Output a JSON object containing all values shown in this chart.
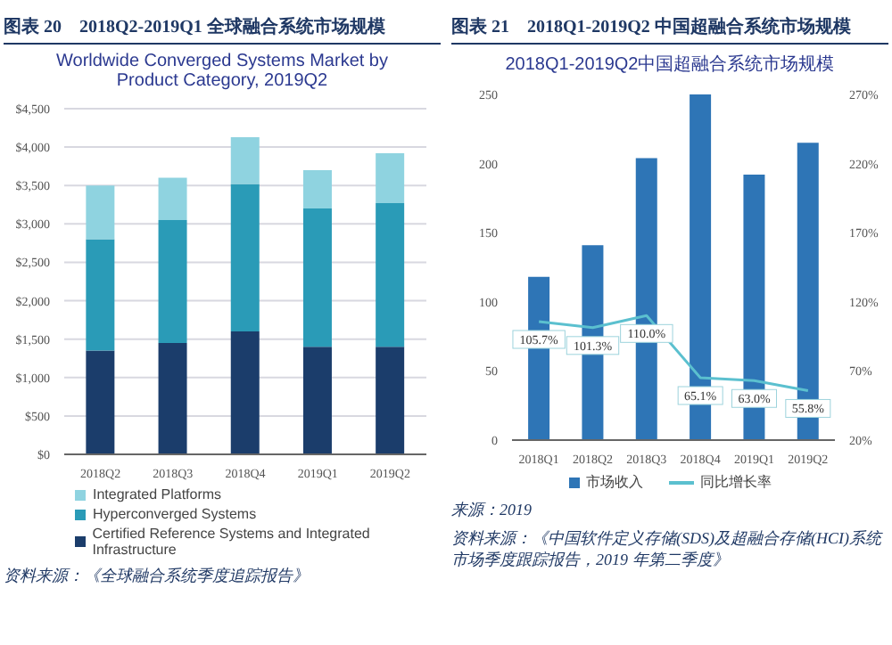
{
  "chart_data": [
    {
      "type": "bar",
      "title": "图表 20　2018Q2-2019Q1 全球融合系统市场规模",
      "subtitle": "Worldwide Converged Systems Market by Product Category, 2019Q2",
      "categories": [
        "2018Q2",
        "2018Q3",
        "2018Q4",
        "2019Q1",
        "2019Q2"
      ],
      "stacked": true,
      "series": [
        {
          "name": "Certified Reference Systems and Integrated Infrastructure",
          "color": "#1b3d6b",
          "values": [
            1350,
            1450,
            1600,
            1400,
            1400
          ]
        },
        {
          "name": "Hyperconverged Systems",
          "color": "#2a9bb7",
          "values": [
            1450,
            1600,
            1920,
            1800,
            1870
          ]
        },
        {
          "name": "Integrated Platforms",
          "color": "#8fd3e0",
          "values": [
            700,
            550,
            610,
            500,
            650
          ]
        }
      ],
      "ylim": [
        0,
        4500
      ],
      "yticks": [
        {
          "value": 0,
          "label": "$0"
        },
        {
          "value": 500,
          "label": "$500"
        },
        {
          "value": 1000,
          "label": "$1,000"
        },
        {
          "value": 1500,
          "label": "$1,500"
        },
        {
          "value": 2000,
          "label": "$2,000"
        },
        {
          "value": 2500,
          "label": "$2,500"
        },
        {
          "value": 3000,
          "label": "$3,000"
        },
        {
          "value": 3500,
          "label": "$3,500"
        },
        {
          "value": 4000,
          "label": "$4,000"
        },
        {
          "value": 4500,
          "label": "$4,500"
        }
      ],
      "grid": "y",
      "legend": "bottom",
      "annotations": [
        "资料来源：《全球融合系统季度追踪报告》"
      ]
    },
    {
      "type": "bar",
      "title": "图表 21　2018Q1-2019Q2 中国超融合系统市场规模",
      "subtitle": "2018Q1-2019Q2中国超融合系统市场规模",
      "categories": [
        "2018Q1",
        "2018Q2",
        "2018Q3",
        "2018Q4",
        "2019Q1",
        "2019Q2"
      ],
      "series": [
        {
          "name": "市场收入",
          "color": "#2e75b6",
          "values": [
            118,
            141,
            204,
            250,
            192,
            215
          ]
        },
        {
          "name": "同比增长率",
          "type": "line",
          "axis": "y2",
          "color": "#5bc0cf",
          "values": [
            105.7,
            101.3,
            110.0,
            65.1,
            63.0,
            55.8
          ],
          "value_labels": [
            "105.7%",
            "101.3%",
            "110.0%",
            "65.1%",
            "63.0%",
            "55.8%"
          ]
        }
      ],
      "ylim": [
        0,
        250
      ],
      "yticks": [
        0,
        50,
        100,
        150,
        200,
        250
      ],
      "y2lim": [
        20,
        270
      ],
      "y2ticks": [
        {
          "value": 20,
          "label": "20%"
        },
        {
          "value": 70,
          "label": "70%"
        },
        {
          "value": 120,
          "label": "120%"
        },
        {
          "value": 170,
          "label": "170%"
        },
        {
          "value": 220,
          "label": "220%"
        },
        {
          "value": 270,
          "label": "270%"
        }
      ],
      "legend": "bottom",
      "annotations": [
        "来源：2019",
        "资料来源：《中国软件定义存储(SDS)及超融合存储(HCI)系统市场季度跟踪报告，2019 年第二季度》"
      ]
    }
  ]
}
